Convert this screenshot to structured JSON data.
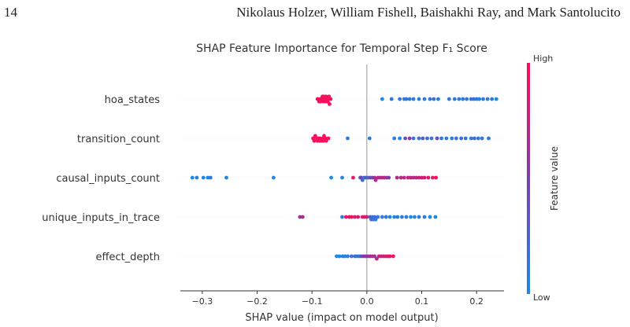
{
  "page": {
    "number": "14",
    "running_head": "Nikolaus Holzer, William Fishell, Baishakhi Ray, and Mark Santolucito"
  },
  "chart_data": {
    "type": "scatter",
    "subtype": "shap-beeswarm",
    "title": "SHAP Feature Importance for Temporal Step F₁ Score",
    "xlabel": "SHAP value (impact on model output)",
    "ylabel": "",
    "xlim": [
      -0.34,
      0.25
    ],
    "xticks": [
      -0.3,
      -0.2,
      -0.1,
      0.0,
      0.1,
      0.2
    ],
    "xtick_labels": [
      "−0.3",
      "−0.2",
      "−0.1",
      "0.0",
      "0.1",
      "0.2"
    ],
    "grid": false,
    "colorbar": {
      "label": "Feature value",
      "high_label": "High",
      "low_label": "Low",
      "low_color": "#1E88E5",
      "high_color": "#FF0D57"
    },
    "features": [
      {
        "name": "hoa_states",
        "points": [
          [
            -0.09,
            0.97
          ],
          [
            -0.087,
            0.97
          ],
          [
            -0.084,
            0.97
          ],
          [
            -0.081,
            0.97
          ],
          [
            -0.078,
            0.97
          ],
          [
            -0.075,
            0.97
          ],
          [
            -0.072,
            0.97
          ],
          [
            -0.069,
            0.97
          ],
          [
            -0.066,
            0.97
          ],
          [
            -0.089,
            0.98
          ],
          [
            -0.085,
            0.98
          ],
          [
            -0.08,
            0.98
          ],
          [
            -0.076,
            0.98
          ],
          [
            -0.071,
            0.98
          ],
          [
            -0.079,
            0.96
          ],
          [
            -0.074,
            0.96
          ],
          [
            -0.068,
            0.96
          ],
          [
            0.028,
            0.0
          ],
          [
            0.045,
            0.1
          ],
          [
            0.06,
            0.1
          ],
          [
            0.068,
            0.1
          ],
          [
            0.072,
            0.1
          ],
          [
            0.078,
            0.1
          ],
          [
            0.085,
            0.1
          ],
          [
            0.095,
            0.05
          ],
          [
            0.105,
            0.1
          ],
          [
            0.115,
            0.1
          ],
          [
            0.122,
            0.2
          ],
          [
            0.13,
            0.1
          ],
          [
            0.15,
            0.1
          ],
          [
            0.16,
            0.1
          ],
          [
            0.168,
            0.1
          ],
          [
            0.175,
            0.1
          ],
          [
            0.182,
            0.1
          ],
          [
            0.19,
            0.2
          ],
          [
            0.195,
            0.1
          ],
          [
            0.2,
            0.1
          ],
          [
            0.205,
            0.0
          ],
          [
            0.212,
            0.1
          ],
          [
            0.22,
            0.1
          ],
          [
            0.228,
            0.1
          ],
          [
            0.236,
            0.0
          ]
        ]
      },
      {
        "name": "transition_count",
        "points": [
          [
            -0.098,
            0.97
          ],
          [
            -0.094,
            0.97
          ],
          [
            -0.09,
            0.97
          ],
          [
            -0.086,
            0.97
          ],
          [
            -0.082,
            0.97
          ],
          [
            -0.078,
            0.97
          ],
          [
            -0.074,
            0.97
          ],
          [
            -0.07,
            0.97
          ],
          [
            -0.096,
            0.98
          ],
          [
            -0.091,
            0.98
          ],
          [
            -0.085,
            0.98
          ],
          [
            -0.08,
            0.98
          ],
          [
            -0.075,
            0.98
          ],
          [
            -0.088,
            0.96
          ],
          [
            -0.079,
            0.96
          ],
          [
            -0.035,
            0.1
          ],
          [
            0.005,
            0.1
          ],
          [
            0.05,
            0.1
          ],
          [
            0.06,
            0.0
          ],
          [
            0.07,
            0.35
          ],
          [
            0.078,
            0.6
          ],
          [
            0.085,
            0.1
          ],
          [
            0.095,
            0.1
          ],
          [
            0.102,
            0.3
          ],
          [
            0.11,
            0.2
          ],
          [
            0.118,
            0.1
          ],
          [
            0.128,
            0.4
          ],
          [
            0.136,
            0.1
          ],
          [
            0.145,
            0.1
          ],
          [
            0.155,
            0.1
          ],
          [
            0.163,
            0.1
          ],
          [
            0.172,
            0.2
          ],
          [
            0.18,
            0.1
          ],
          [
            0.19,
            0.1
          ],
          [
            0.196,
            0.2
          ],
          [
            0.203,
            0.1
          ],
          [
            0.21,
            0.1
          ],
          [
            0.222,
            0.1
          ]
        ]
      },
      {
        "name": "causal_inputs_count",
        "points": [
          [
            -0.318,
            0.0
          ],
          [
            -0.31,
            0.05
          ],
          [
            -0.298,
            0.0
          ],
          [
            -0.29,
            0.0
          ],
          [
            -0.285,
            0.1
          ],
          [
            -0.256,
            0.0
          ],
          [
            -0.17,
            0.0
          ],
          [
            -0.065,
            0.0
          ],
          [
            -0.045,
            0.05
          ],
          [
            -0.025,
            0.95
          ],
          [
            -0.012,
            0.3
          ],
          [
            -0.01,
            0.5
          ],
          [
            -0.008,
            0.2
          ],
          [
            -0.005,
            0.1
          ],
          [
            -0.002,
            0.3
          ],
          [
            0.002,
            0.2
          ],
          [
            0.006,
            0.4
          ],
          [
            0.01,
            0.5
          ],
          [
            0.014,
            0.6
          ],
          [
            0.016,
            0.7
          ],
          [
            0.02,
            0.8
          ],
          [
            0.024,
            0.7
          ],
          [
            0.028,
            0.7
          ],
          [
            0.032,
            0.75
          ],
          [
            0.036,
            0.6
          ],
          [
            0.04,
            0.5
          ],
          [
            0.055,
            0.7
          ],
          [
            0.062,
            0.75
          ],
          [
            0.068,
            0.7
          ],
          [
            0.075,
            0.8
          ],
          [
            0.08,
            0.75
          ],
          [
            0.085,
            0.7
          ],
          [
            0.09,
            0.75
          ],
          [
            0.095,
            0.8
          ],
          [
            0.1,
            0.85
          ],
          [
            0.105,
            0.8
          ],
          [
            0.112,
            0.9
          ],
          [
            0.12,
            0.9
          ],
          [
            0.126,
            0.95
          ]
        ]
      },
      {
        "name": "unique_inputs_in_trace",
        "points": [
          [
            -0.122,
            0.6
          ],
          [
            -0.117,
            0.7
          ],
          [
            -0.045,
            0.1
          ],
          [
            -0.038,
            0.95
          ],
          [
            -0.032,
            0.9
          ],
          [
            -0.028,
            0.95
          ],
          [
            -0.022,
            0.9
          ],
          [
            -0.016,
            0.85
          ],
          [
            -0.008,
            0.9
          ],
          [
            -0.004,
            0.85
          ],
          [
            0.0,
            0.8
          ],
          [
            0.006,
            0.3
          ],
          [
            0.008,
            0.2
          ],
          [
            0.01,
            0.1
          ],
          [
            0.012,
            0.15
          ],
          [
            0.014,
            0.2
          ],
          [
            0.016,
            0.1
          ],
          [
            0.02,
            0.1
          ],
          [
            0.028,
            0.1
          ],
          [
            0.035,
            0.1
          ],
          [
            0.042,
            0.0
          ],
          [
            0.05,
            0.0
          ],
          [
            0.056,
            0.1
          ],
          [
            0.064,
            0.1
          ],
          [
            0.072,
            0.1
          ],
          [
            0.08,
            0.0
          ],
          [
            0.087,
            0.0
          ],
          [
            0.095,
            0.1
          ],
          [
            0.105,
            0.1
          ],
          [
            0.115,
            0.0
          ],
          [
            0.125,
            0.0
          ]
        ]
      },
      {
        "name": "effect_depth",
        "points": [
          [
            -0.055,
            0.0
          ],
          [
            -0.05,
            0.0
          ],
          [
            -0.044,
            0.1
          ],
          [
            -0.04,
            0.0
          ],
          [
            -0.035,
            0.1
          ],
          [
            -0.028,
            0.2
          ],
          [
            -0.022,
            0.1
          ],
          [
            -0.018,
            0.2
          ],
          [
            -0.014,
            0.1
          ],
          [
            -0.01,
            0.4
          ],
          [
            -0.006,
            0.5
          ],
          [
            -0.002,
            0.6
          ],
          [
            0.002,
            0.5
          ],
          [
            0.006,
            0.7
          ],
          [
            0.01,
            0.75
          ],
          [
            0.014,
            0.6
          ],
          [
            0.018,
            0.7
          ],
          [
            0.022,
            0.8
          ],
          [
            0.026,
            0.85
          ],
          [
            0.03,
            0.75
          ],
          [
            0.034,
            0.85
          ],
          [
            0.038,
            0.9
          ],
          [
            0.042,
            0.9
          ],
          [
            0.048,
            0.95
          ]
        ]
      }
    ]
  }
}
